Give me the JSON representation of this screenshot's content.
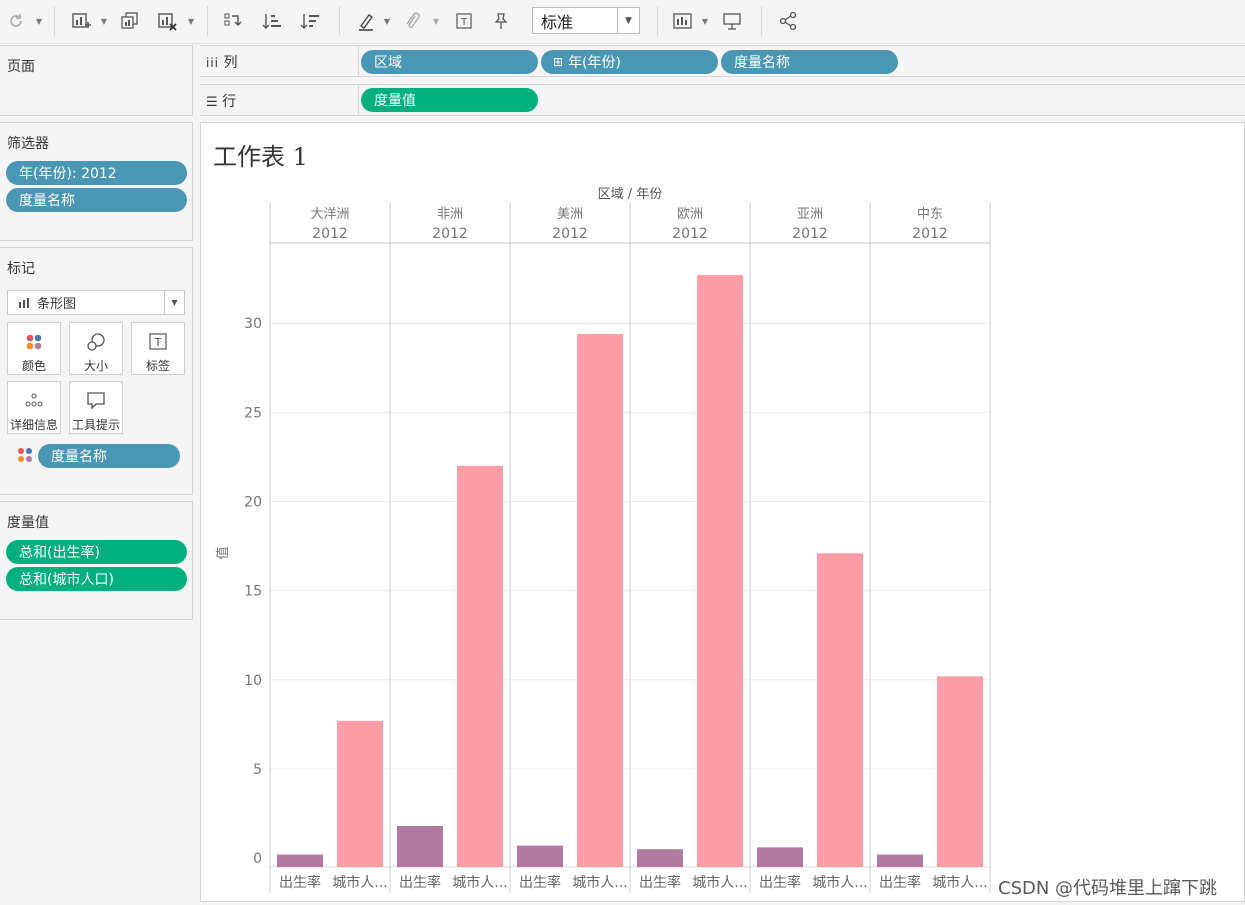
{
  "toolbar": {
    "std_select": "标准"
  },
  "pages": {
    "title": "页面"
  },
  "shelves": {
    "columns_label": "列",
    "rows_label": "行",
    "columns": [
      "区域",
      "年(年份)",
      "度量名称"
    ],
    "rows": [
      "度量值"
    ]
  },
  "filters": {
    "title": "筛选器",
    "items": [
      "年(年份): 2012",
      "度量名称"
    ]
  },
  "marks": {
    "title": "标记",
    "type": "条形图",
    "cards": [
      "颜色",
      "大小",
      "标签",
      "详细信息",
      "工具提示"
    ],
    "color_field": "度量名称"
  },
  "measure_values": {
    "title": "度量值",
    "items": [
      "总和(出生率)",
      "总和(城市人口)"
    ]
  },
  "sheet": {
    "title": "工作表 1"
  },
  "chart_data": {
    "type": "bar",
    "header_title": "区域 / 年份",
    "ylabel": "值",
    "ylim": [
      -0.5,
      34.5
    ],
    "yticks": [
      0,
      5,
      10,
      15,
      20,
      25,
      30
    ],
    "colors": {
      "出生率": "#b07aa1",
      "城市人口": "#ff9da7"
    },
    "x_labels": [
      "出生率",
      "城市人..."
    ],
    "series_names": [
      "出生率",
      "城市人口"
    ],
    "panes": [
      {
        "region": "大洋洲",
        "year": "2012",
        "values": [
          0.2,
          7.7
        ]
      },
      {
        "region": "非洲",
        "year": "2012",
        "values": [
          1.8,
          22.0
        ]
      },
      {
        "region": "美洲",
        "year": "2012",
        "values": [
          0.7,
          29.4
        ]
      },
      {
        "region": "欧洲",
        "year": "2012",
        "values": [
          0.5,
          32.7
        ]
      },
      {
        "region": "亚洲",
        "year": "2012",
        "values": [
          0.6,
          17.1
        ]
      },
      {
        "region": "中东",
        "year": "2012",
        "values": [
          0.2,
          10.2
        ]
      }
    ]
  },
  "watermark": "CSDN @代码堆里上蹿下跳"
}
